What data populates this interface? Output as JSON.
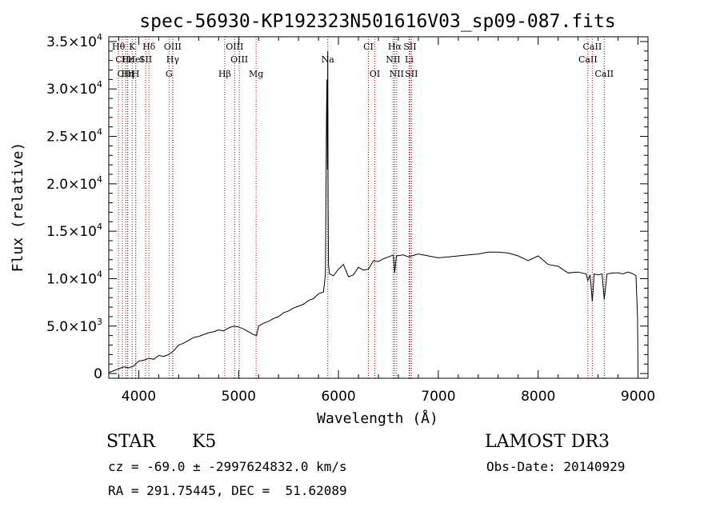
{
  "chart_data": {
    "type": "line",
    "title": "spec-56930-KP192323N501616V03_sp09-087.fits",
    "xlabel": "Wavelength (Å)",
    "ylabel": "Flux (relative)",
    "xlim": [
      3700,
      9100
    ],
    "ylim": [
      -500,
      35500
    ],
    "xticks": [
      4000,
      5000,
      6000,
      7000,
      8000,
      9000
    ],
    "xtick_labels": [
      "4000",
      "5000",
      "6000",
      "7000",
      "8000",
      "9000"
    ],
    "yticks": [
      {
        "value": 0,
        "mant": "0",
        "exp": ""
      },
      {
        "value": 5000,
        "mant": "5.0×10",
        "exp": "3"
      },
      {
        "value": 10000,
        "mant": "1.0×10",
        "exp": "4"
      },
      {
        "value": 15000,
        "mant": "1.5×10",
        "exp": "4"
      },
      {
        "value": 20000,
        "mant": "2.0×10",
        "exp": "4"
      },
      {
        "value": 25000,
        "mant": "2.5×10",
        "exp": "4"
      },
      {
        "value": 30000,
        "mant": "3.0×10",
        "exp": "4"
      },
      {
        "value": 35000,
        "mant": "3.5×10",
        "exp": "4"
      }
    ],
    "series": [
      {
        "name": "spectrum",
        "color": "#000000",
        "x": [
          3700,
          3750,
          3800,
          3850,
          3900,
          3950,
          4000,
          4050,
          4100,
          4150,
          4200,
          4250,
          4300,
          4350,
          4400,
          4450,
          4500,
          4550,
          4600,
          4650,
          4700,
          4750,
          4800,
          4850,
          4900,
          4950,
          5000,
          5050,
          5100,
          5150,
          5180,
          5200,
          5250,
          5300,
          5350,
          5400,
          5450,
          5500,
          5550,
          5600,
          5650,
          5700,
          5750,
          5800,
          5850,
          5870,
          5880,
          5885,
          5890,
          5893,
          5896,
          5900,
          5910,
          5950,
          6000,
          6050,
          6100,
          6150,
          6200,
          6250,
          6300,
          6350,
          6400,
          6450,
          6500,
          6550,
          6563,
          6580,
          6650,
          6700,
          6800,
          6900,
          7000,
          7100,
          7200,
          7300,
          7400,
          7500,
          7600,
          7700,
          7800,
          7900,
          8000,
          8100,
          8200,
          8300,
          8400,
          8480,
          8498,
          8520,
          8542,
          8560,
          8600,
          8640,
          8662,
          8690,
          8750,
          8800,
          8850,
          8900,
          8950,
          8980,
          8995,
          9000
        ],
        "y": [
          100,
          300,
          500,
          700,
          600,
          800,
          1300,
          1400,
          1600,
          1500,
          1900,
          1800,
          2000,
          2400,
          3000,
          3200,
          3500,
          3800,
          3900,
          4100,
          4300,
          4400,
          4600,
          4500,
          4800,
          5000,
          4900,
          4700,
          4400,
          4100,
          4000,
          5000,
          5300,
          5500,
          5800,
          6000,
          6400,
          6600,
          6900,
          7100,
          7300,
          7700,
          7900,
          8400,
          8600,
          10500,
          27000,
          31000,
          21500,
          34000,
          18000,
          11500,
          10500,
          10300,
          11000,
          11500,
          10200,
          10400,
          11200,
          10900,
          11000,
          11900,
          11800,
          12100,
          12300,
          12500,
          10600,
          12400,
          12500,
          12300,
          12600,
          12400,
          12200,
          12300,
          12400,
          12500,
          12600,
          12800,
          12800,
          12700,
          12400,
          11900,
          12400,
          11500,
          11300,
          10600,
          10700,
          10500,
          9800,
          10400,
          7600,
          10500,
          10400,
          10500,
          7800,
          10500,
          10600,
          10600,
          10500,
          10700,
          10500,
          10300,
          6000,
          300
        ]
      }
    ],
    "lines": [
      {
        "label": "Hθ",
        "x": 3797,
        "row": 0
      },
      {
        "label": "CII",
        "x": 3835,
        "row": 1
      },
      {
        "label": "CIII",
        "x": 3870,
        "row": 2
      },
      {
        "label": "Hε",
        "x": 3889,
        "row": 1
      },
      {
        "label": "Hη",
        "x": 3889,
        "row": 2
      },
      {
        "label": "K",
        "x": 3934,
        "row": 0
      },
      {
        "label": "HeI",
        "x": 3970,
        "row": 1
      },
      {
        "label": "H",
        "x": 3969,
        "row": 2
      },
      {
        "label": "Hδ",
        "x": 4102,
        "row": 0
      },
      {
        "label": "SII",
        "x": 4069,
        "row": 1
      },
      {
        "label": "OIII",
        "x": 4340,
        "row": 0
      },
      {
        "label": "Hγ",
        "x": 4340,
        "row": 1
      },
      {
        "label": "G",
        "x": 4304,
        "row": 2
      },
      {
        "label": "OIII",
        "x": 4960,
        "row": 0
      },
      {
        "label": "OIII",
        "x": 5007,
        "row": 1
      },
      {
        "label": "Hβ",
        "x": 4861,
        "row": 2
      },
      {
        "label": "Mg",
        "x": 5175,
        "row": 2
      },
      {
        "label": "Na",
        "x": 5893,
        "row": 1
      },
      {
        "label": "CI",
        "x": 6300,
        "row": 0
      },
      {
        "label": "OI",
        "x": 6364,
        "row": 2
      },
      {
        "label": "Hα",
        "x": 6563,
        "row": 0
      },
      {
        "label": "SII",
        "x": 6716,
        "row": 0
      },
      {
        "label": "NII",
        "x": 6548,
        "row": 1
      },
      {
        "label": "Li",
        "x": 6708,
        "row": 1
      },
      {
        "label": "NII",
        "x": 6583,
        "row": 2
      },
      {
        "label": "SII",
        "x": 6731,
        "row": 2
      },
      {
        "label": "CaII",
        "x": 8498,
        "row": 1
      },
      {
        "label": "CaII",
        "x": 8542,
        "row": 0
      },
      {
        "label": "CaII",
        "x": 8662,
        "row": 2
      }
    ],
    "line_color": "#b00000"
  },
  "info": {
    "object_class": "STAR",
    "subclass": "K5",
    "survey": "LAMOST DR3",
    "redshift": "cz = -69.0 ± -2997624832.0 km/s",
    "obs_date": "Obs-Date: 20140929",
    "coords": "RA = 291.75445, DEC =  51.62089"
  }
}
